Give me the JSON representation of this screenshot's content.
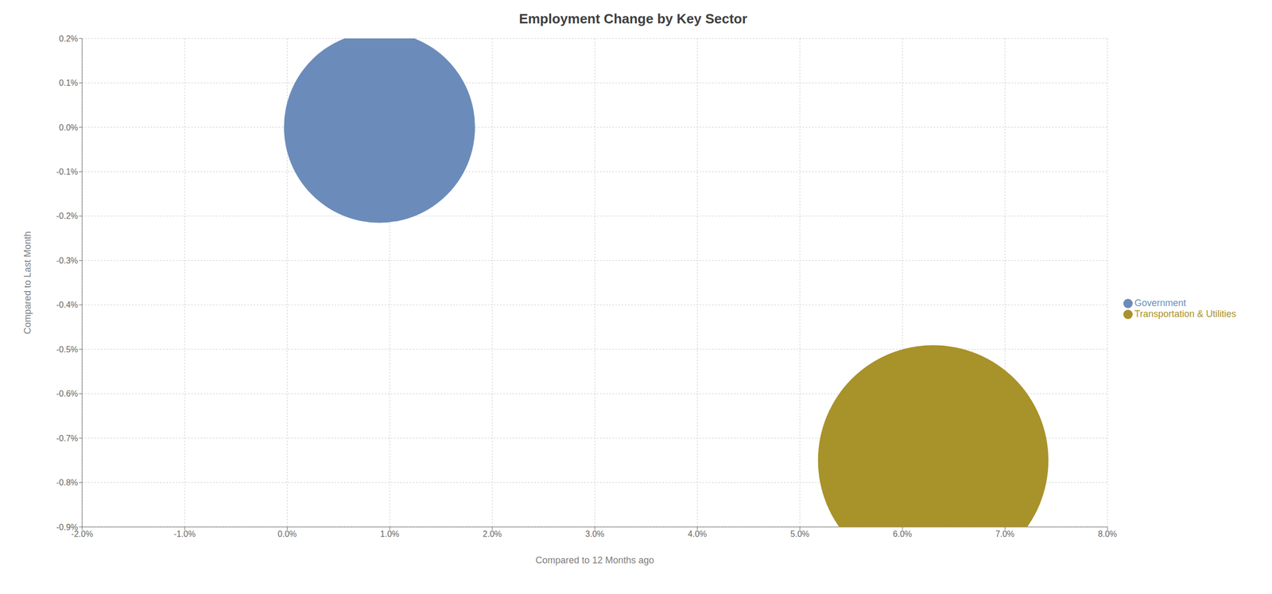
{
  "chart_data": {
    "type": "scatter",
    "title": "Employment Change by Key Sector",
    "x_label": "Compared to 12 Months ago",
    "y_label": "Compared to Last Month",
    "xlim": [
      -0.02,
      0.08
    ],
    "ylim": [
      -0.009,
      0.002
    ],
    "xticks": [
      {
        "value": -0.02,
        "label": "-2.0%"
      },
      {
        "value": -0.01,
        "label": "-1.0%"
      },
      {
        "value": 0.0,
        "label": "0.0%"
      },
      {
        "value": 0.01,
        "label": "1.0%"
      },
      {
        "value": 0.02,
        "label": "2.0%"
      },
      {
        "value": 0.03,
        "label": "3.0%"
      },
      {
        "value": 0.04,
        "label": "4.0%"
      },
      {
        "value": 0.05,
        "label": "5.0%"
      },
      {
        "value": 0.06,
        "label": "6.0%"
      },
      {
        "value": 0.07,
        "label": "7.0%"
      },
      {
        "value": 0.08,
        "label": "8.0%"
      }
    ],
    "yticks": [
      {
        "value": 0.002,
        "label": "0.2%"
      },
      {
        "value": 0.001,
        "label": "0.1%"
      },
      {
        "value": 0.0,
        "label": "0.0%"
      },
      {
        "value": -0.001,
        "label": "-0.1%"
      },
      {
        "value": -0.002,
        "label": "-0.2%"
      },
      {
        "value": -0.003,
        "label": "-0.3%"
      },
      {
        "value": -0.004,
        "label": "-0.4%"
      },
      {
        "value": -0.005,
        "label": "-0.5%"
      },
      {
        "value": -0.006,
        "label": "-0.6%"
      },
      {
        "value": -0.007,
        "label": "-0.7%"
      },
      {
        "value": -0.008,
        "label": "-0.8%"
      },
      {
        "value": -0.009,
        "label": "-0.9%"
      }
    ],
    "series": [
      {
        "name": "Government",
        "color": "#6b8cba",
        "x": [
          0.009
        ],
        "y": [
          0.0
        ],
        "size": [
          55000
        ]
      },
      {
        "name": "Transportation & Utilities",
        "color": "#a8922a",
        "x": [
          0.063
        ],
        "y": [
          -0.0075
        ],
        "size": [
          80000
        ]
      }
    ],
    "grid": true,
    "legend": "right",
    "marker": "circle"
  }
}
